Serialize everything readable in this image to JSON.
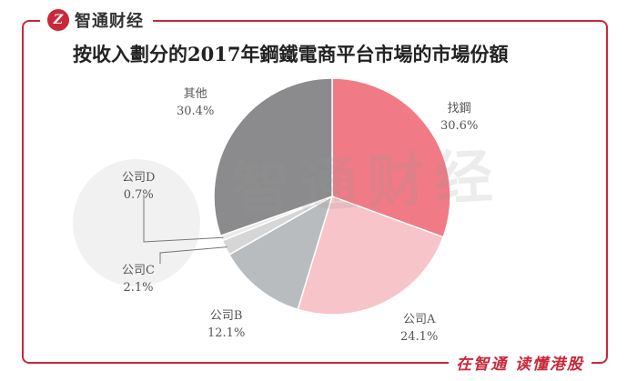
{
  "brand": {
    "logo_letter": "Z",
    "name": "智通财经"
  },
  "title": "按收入劃分的2017年鋼鐵電商平台市場的市場份額",
  "watermark": {
    "text": "智通财经"
  },
  "footer": {
    "slogan": "在智通 读懂港股"
  },
  "colors": {
    "frame": "#c8283a",
    "slices": [
      "#f07b86",
      "#f6c4c9",
      "#b9bcbe",
      "#d6d6d6",
      "#e9e9e9",
      "#8b8b8d"
    ]
  },
  "chart_data": {
    "type": "pie",
    "title": "按收入劃分的2017年鋼鐵電商平台市場的市場份額",
    "unit": "%",
    "slices": [
      {
        "label": "找鋼",
        "value": 30.6,
        "display": "30.6%"
      },
      {
        "label": "公司A",
        "value": 24.1,
        "display": "24.1%"
      },
      {
        "label": "公司B",
        "value": 12.1,
        "display": "12.1%"
      },
      {
        "label": "公司C",
        "value": 2.1,
        "display": "2.1%"
      },
      {
        "label": "公司D",
        "value": 0.7,
        "display": "0.7%"
      },
      {
        "label": "其他",
        "value": 30.4,
        "display": "30.4%"
      }
    ]
  }
}
